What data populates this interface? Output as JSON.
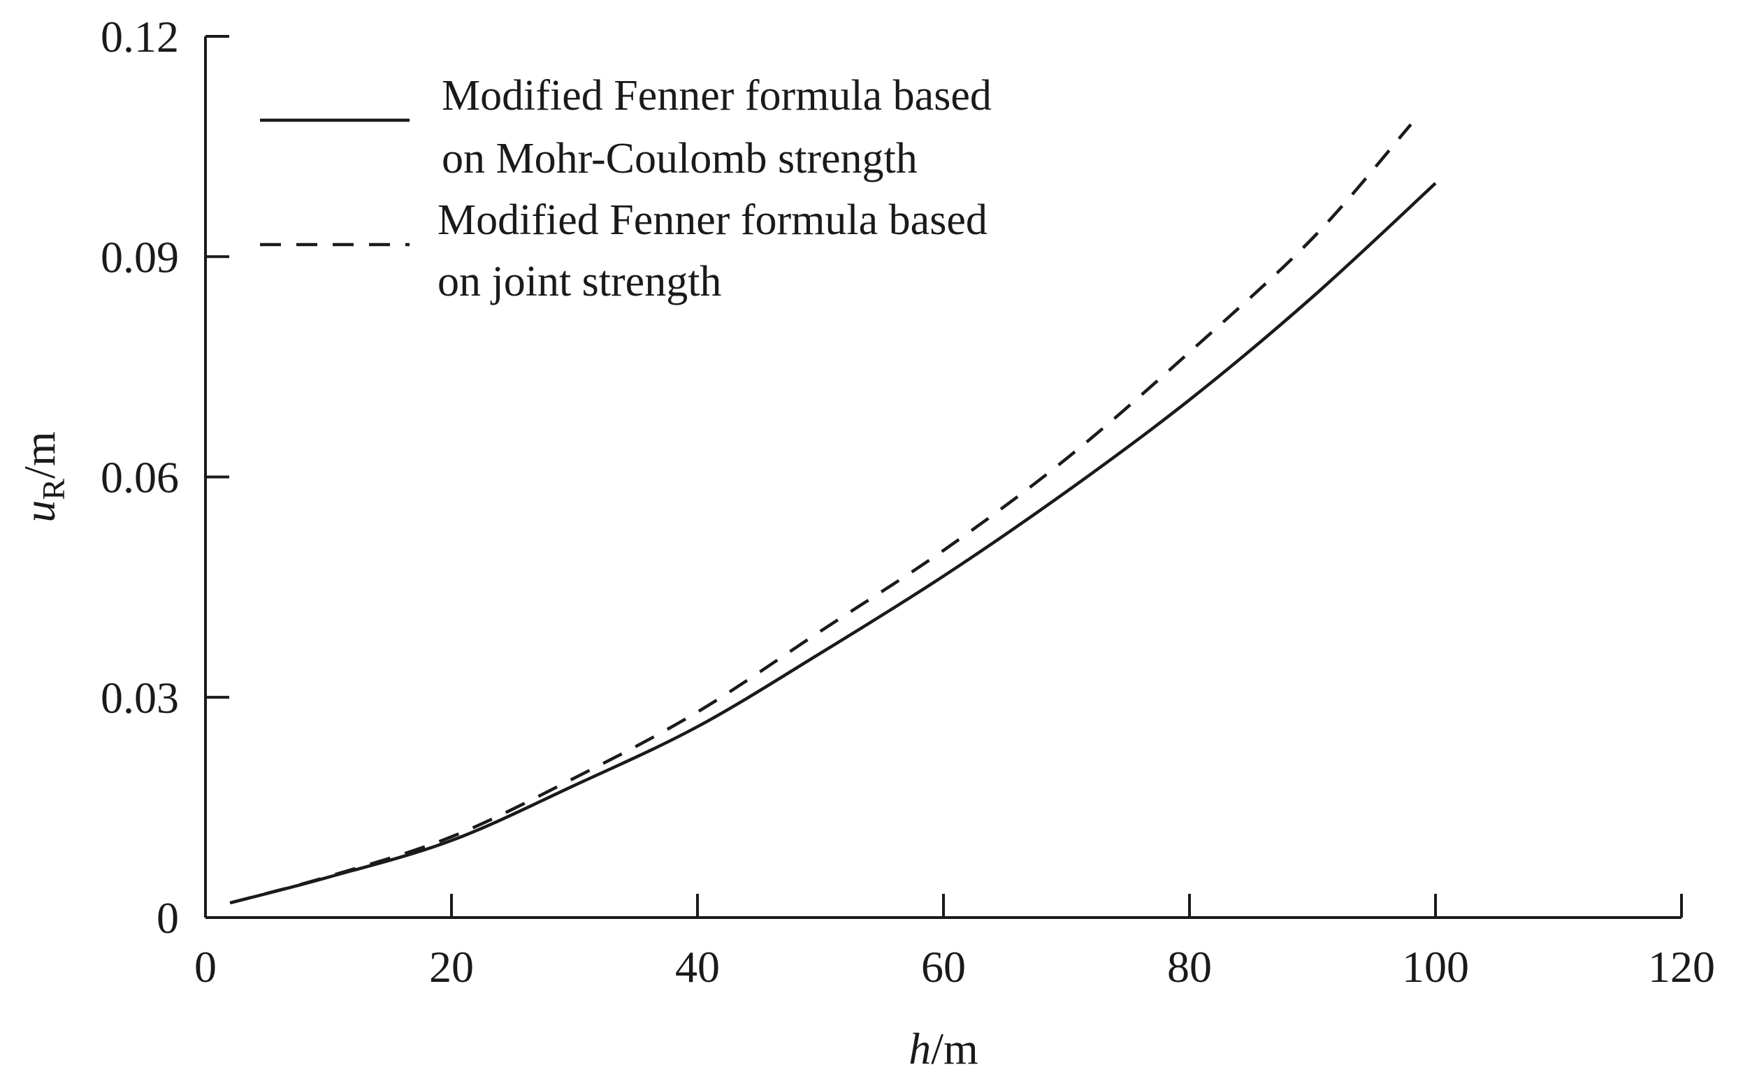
{
  "chart_data": {
    "type": "line",
    "title": "",
    "xlabel": {
      "var": "h",
      "unit": "/m"
    },
    "ylabel": {
      "var": "u",
      "sub": "R",
      "unit": "/m"
    },
    "xlim": [
      0,
      120
    ],
    "ylim": [
      0,
      0.12
    ],
    "xticks": [
      0,
      20,
      40,
      60,
      80,
      100,
      120
    ],
    "yticks": [
      0,
      0.03,
      0.06,
      0.09,
      0.12
    ],
    "xtick_labels": [
      "0",
      "20",
      "40",
      "60",
      "80",
      "100",
      "120"
    ],
    "ytick_labels": [
      "0",
      "0.03",
      "0.06",
      "0.09",
      "0.12"
    ],
    "grid": false,
    "legend_position": "top-left",
    "series": [
      {
        "name": "Modified Fenner formula based on Mohr-Coulomb strength",
        "legend_lines": [
          "Modified Fenner formula based",
          "on Mohr-Coulomb strength"
        ],
        "style": "solid",
        "color": "#1a1a1a",
        "x": [
          2,
          10,
          20,
          30,
          40,
          50,
          60,
          70,
          80,
          90,
          100
        ],
        "y": [
          0.002,
          0.0055,
          0.0105,
          0.018,
          0.026,
          0.036,
          0.0465,
          0.058,
          0.0705,
          0.0845,
          0.1
        ]
      },
      {
        "name": "Modified Fenner formula based on joint strength",
        "legend_lines": [
          "Modified Fenner formula based",
          "on joint strength"
        ],
        "style": "dashed",
        "color": "#1a1a1a",
        "x": [
          2,
          10,
          20,
          30,
          40,
          50,
          60,
          70,
          80,
          90,
          98
        ],
        "y": [
          0.002,
          0.0056,
          0.011,
          0.019,
          0.028,
          0.039,
          0.05,
          0.0625,
          0.077,
          0.0925,
          0.108
        ]
      }
    ]
  }
}
